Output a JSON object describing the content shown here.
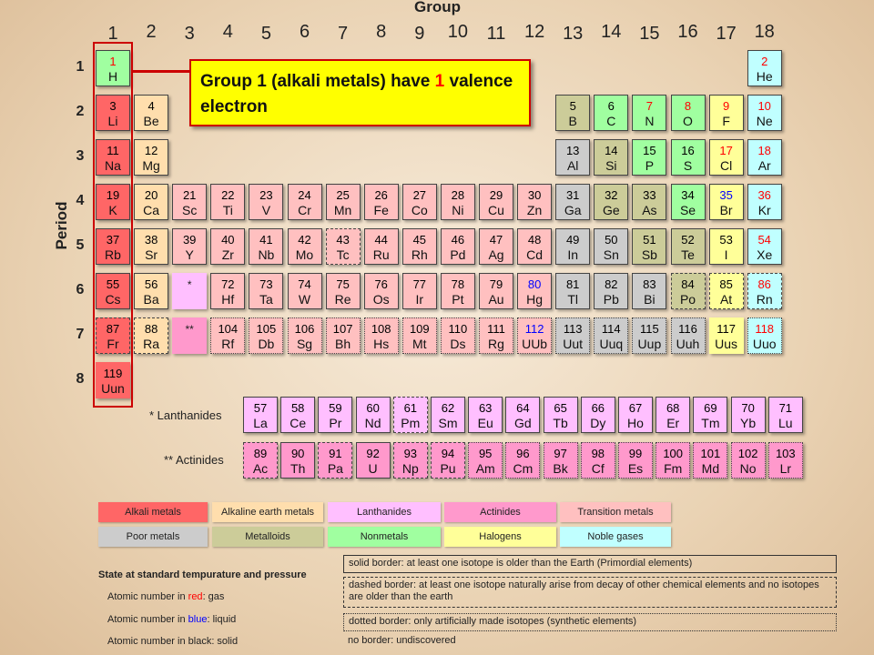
{
  "header": {
    "group_label": "Group",
    "period_label": "Period"
  },
  "groups": [
    "1",
    "2",
    "3",
    "4",
    "5",
    "6",
    "7",
    "8",
    "9",
    "10",
    "11",
    "12",
    "13",
    "14",
    "15",
    "16",
    "17",
    "18"
  ],
  "periods": [
    "1",
    "2",
    "3",
    "4",
    "5",
    "6",
    "7",
    "8"
  ],
  "callout": {
    "text_before": "Group 1 (alkali metals) have ",
    "highlight": "1",
    "text_after": " valence electron"
  },
  "colors": {
    "alkali": "#ff6666",
    "alkaline": "#ffdead",
    "lanthanide": "#ffbfff",
    "actinide": "#ff99cc",
    "transition": "#ffc0c0",
    "poor": "#cccccc",
    "metalloid": "#cccc99",
    "nonmetal": "#a0ffa0",
    "halogen": "#ffff99",
    "noble": "#c0ffff",
    "gas": "#ff0000",
    "liquid": "#0000ff",
    "solid": "#000000",
    "unknown_cell": "#ffc0c0"
  },
  "elements": [
    {
      "n": "1",
      "s": "H",
      "c": "nonmetal",
      "st": "gas",
      "b": "solid"
    },
    {
      "n": "2",
      "s": "He",
      "c": "noble",
      "st": "gas",
      "b": "solid"
    },
    {
      "n": "3",
      "s": "Li",
      "c": "alkali",
      "st": "solid",
      "b": "solid"
    },
    {
      "n": "4",
      "s": "Be",
      "c": "alkaline",
      "st": "solid",
      "b": "solid"
    },
    {
      "n": "5",
      "s": "B",
      "c": "metalloid",
      "st": "solid",
      "b": "solid"
    },
    {
      "n": "6",
      "s": "C",
      "c": "nonmetal",
      "st": "solid",
      "b": "solid"
    },
    {
      "n": "7",
      "s": "N",
      "c": "nonmetal",
      "st": "gas",
      "b": "solid"
    },
    {
      "n": "8",
      "s": "O",
      "c": "nonmetal",
      "st": "gas",
      "b": "solid"
    },
    {
      "n": "9",
      "s": "F",
      "c": "halogen",
      "st": "gas",
      "b": "solid"
    },
    {
      "n": "10",
      "s": "Ne",
      "c": "noble",
      "st": "gas",
      "b": "solid"
    },
    {
      "n": "11",
      "s": "Na",
      "c": "alkali",
      "st": "solid",
      "b": "solid"
    },
    {
      "n": "12",
      "s": "Mg",
      "c": "alkaline",
      "st": "solid",
      "b": "solid"
    },
    {
      "n": "13",
      "s": "Al",
      "c": "poor",
      "st": "solid",
      "b": "solid"
    },
    {
      "n": "14",
      "s": "Si",
      "c": "metalloid",
      "st": "solid",
      "b": "solid"
    },
    {
      "n": "15",
      "s": "P",
      "c": "nonmetal",
      "st": "solid",
      "b": "solid"
    },
    {
      "n": "16",
      "s": "S",
      "c": "nonmetal",
      "st": "solid",
      "b": "solid"
    },
    {
      "n": "17",
      "s": "Cl",
      "c": "halogen",
      "st": "gas",
      "b": "solid"
    },
    {
      "n": "18",
      "s": "Ar",
      "c": "noble",
      "st": "gas",
      "b": "solid"
    },
    {
      "n": "19",
      "s": "K",
      "c": "alkali",
      "st": "solid",
      "b": "solid"
    },
    {
      "n": "20",
      "s": "Ca",
      "c": "alkaline",
      "st": "solid",
      "b": "solid"
    },
    {
      "n": "21",
      "s": "Sc",
      "c": "transition",
      "st": "solid",
      "b": "solid"
    },
    {
      "n": "22",
      "s": "Ti",
      "c": "transition",
      "st": "solid",
      "b": "solid"
    },
    {
      "n": "23",
      "s": "V",
      "c": "transition",
      "st": "solid",
      "b": "solid"
    },
    {
      "n": "24",
      "s": "Cr",
      "c": "transition",
      "st": "solid",
      "b": "solid"
    },
    {
      "n": "25",
      "s": "Mn",
      "c": "transition",
      "st": "solid",
      "b": "solid"
    },
    {
      "n": "26",
      "s": "Fe",
      "c": "transition",
      "st": "solid",
      "b": "solid"
    },
    {
      "n": "27",
      "s": "Co",
      "c": "transition",
      "st": "solid",
      "b": "solid"
    },
    {
      "n": "28",
      "s": "Ni",
      "c": "transition",
      "st": "solid",
      "b": "solid"
    },
    {
      "n": "29",
      "s": "Cu",
      "c": "transition",
      "st": "solid",
      "b": "solid"
    },
    {
      "n": "30",
      "s": "Zn",
      "c": "transition",
      "st": "solid",
      "b": "solid"
    },
    {
      "n": "31",
      "s": "Ga",
      "c": "poor",
      "st": "solid",
      "b": "solid"
    },
    {
      "n": "32",
      "s": "Ge",
      "c": "metalloid",
      "st": "solid",
      "b": "solid"
    },
    {
      "n": "33",
      "s": "As",
      "c": "metalloid",
      "st": "solid",
      "b": "solid"
    },
    {
      "n": "34",
      "s": "Se",
      "c": "nonmetal",
      "st": "solid",
      "b": "solid"
    },
    {
      "n": "35",
      "s": "Br",
      "c": "halogen",
      "st": "liquid",
      "b": "solid"
    },
    {
      "n": "36",
      "s": "Kr",
      "c": "noble",
      "st": "gas",
      "b": "solid"
    },
    {
      "n": "37",
      "s": "Rb",
      "c": "alkali",
      "st": "solid",
      "b": "solid"
    },
    {
      "n": "38",
      "s": "Sr",
      "c": "alkaline",
      "st": "solid",
      "b": "solid"
    },
    {
      "n": "39",
      "s": "Y",
      "c": "transition",
      "st": "solid",
      "b": "solid"
    },
    {
      "n": "40",
      "s": "Zr",
      "c": "transition",
      "st": "solid",
      "b": "solid"
    },
    {
      "n": "41",
      "s": "Nb",
      "c": "transition",
      "st": "solid",
      "b": "solid"
    },
    {
      "n": "42",
      "s": "Mo",
      "c": "transition",
      "st": "solid",
      "b": "solid"
    },
    {
      "n": "43",
      "s": "Tc",
      "c": "transition",
      "st": "solid",
      "b": "dashed"
    },
    {
      "n": "44",
      "s": "Ru",
      "c": "transition",
      "st": "solid",
      "b": "solid"
    },
    {
      "n": "45",
      "s": "Rh",
      "c": "transition",
      "st": "solid",
      "b": "solid"
    },
    {
      "n": "46",
      "s": "Pd",
      "c": "transition",
      "st": "solid",
      "b": "solid"
    },
    {
      "n": "47",
      "s": "Ag",
      "c": "transition",
      "st": "solid",
      "b": "solid"
    },
    {
      "n": "48",
      "s": "Cd",
      "c": "transition",
      "st": "solid",
      "b": "solid"
    },
    {
      "n": "49",
      "s": "In",
      "c": "poor",
      "st": "solid",
      "b": "solid"
    },
    {
      "n": "50",
      "s": "Sn",
      "c": "poor",
      "st": "solid",
      "b": "solid"
    },
    {
      "n": "51",
      "s": "Sb",
      "c": "metalloid",
      "st": "solid",
      "b": "solid"
    },
    {
      "n": "52",
      "s": "Te",
      "c": "metalloid",
      "st": "solid",
      "b": "solid"
    },
    {
      "n": "53",
      "s": "I",
      "c": "halogen",
      "st": "solid",
      "b": "solid"
    },
    {
      "n": "54",
      "s": "Xe",
      "c": "noble",
      "st": "gas",
      "b": "solid"
    },
    {
      "n": "55",
      "s": "Cs",
      "c": "alkali",
      "st": "solid",
      "b": "solid"
    },
    {
      "n": "56",
      "s": "Ba",
      "c": "alkaline",
      "st": "solid",
      "b": "solid"
    },
    {
      "n": "72",
      "s": "Hf",
      "c": "transition",
      "st": "solid",
      "b": "solid"
    },
    {
      "n": "73",
      "s": "Ta",
      "c": "transition",
      "st": "solid",
      "b": "solid"
    },
    {
      "n": "74",
      "s": "W",
      "c": "transition",
      "st": "solid",
      "b": "solid"
    },
    {
      "n": "75",
      "s": "Re",
      "c": "transition",
      "st": "solid",
      "b": "solid"
    },
    {
      "n": "76",
      "s": "Os",
      "c": "transition",
      "st": "solid",
      "b": "solid"
    },
    {
      "n": "77",
      "s": "Ir",
      "c": "transition",
      "st": "solid",
      "b": "solid"
    },
    {
      "n": "78",
      "s": "Pt",
      "c": "transition",
      "st": "solid",
      "b": "solid"
    },
    {
      "n": "79",
      "s": "Au",
      "c": "transition",
      "st": "solid",
      "b": "solid"
    },
    {
      "n": "80",
      "s": "Hg",
      "c": "transition",
      "st": "liquid",
      "b": "solid"
    },
    {
      "n": "81",
      "s": "Tl",
      "c": "poor",
      "st": "solid",
      "b": "solid"
    },
    {
      "n": "82",
      "s": "Pb",
      "c": "poor",
      "st": "solid",
      "b": "solid"
    },
    {
      "n": "83",
      "s": "Bi",
      "c": "poor",
      "st": "solid",
      "b": "solid"
    },
    {
      "n": "84",
      "s": "Po",
      "c": "metalloid",
      "st": "solid",
      "b": "dashed"
    },
    {
      "n": "85",
      "s": "At",
      "c": "halogen",
      "st": "solid",
      "b": "dashed"
    },
    {
      "n": "86",
      "s": "Rn",
      "c": "noble",
      "st": "gas",
      "b": "dashed"
    },
    {
      "n": "87",
      "s": "Fr",
      "c": "alkali",
      "st": "solid",
      "b": "dashed"
    },
    {
      "n": "88",
      "s": "Ra",
      "c": "alkaline",
      "st": "solid",
      "b": "dashed"
    },
    {
      "n": "104",
      "s": "Rf",
      "c": "transition",
      "st": "solid",
      "b": "dotted"
    },
    {
      "n": "105",
      "s": "Db",
      "c": "transition",
      "st": "solid",
      "b": "dotted"
    },
    {
      "n": "106",
      "s": "Sg",
      "c": "transition",
      "st": "solid",
      "b": "dotted"
    },
    {
      "n": "107",
      "s": "Bh",
      "c": "transition",
      "st": "solid",
      "b": "dotted"
    },
    {
      "n": "108",
      "s": "Hs",
      "c": "transition",
      "st": "solid",
      "b": "dotted"
    },
    {
      "n": "109",
      "s": "Mt",
      "c": "transition",
      "st": "solid",
      "b": "dotted"
    },
    {
      "n": "110",
      "s": "Ds",
      "c": "transition",
      "st": "solid",
      "b": "dotted"
    },
    {
      "n": "111",
      "s": "Rg",
      "c": "transition",
      "st": "solid",
      "b": "dotted"
    },
    {
      "n": "112",
      "s": "UUb",
      "c": "transition",
      "st": "liquid",
      "b": "dotted"
    },
    {
      "n": "113",
      "s": "Uut",
      "c": "poor",
      "st": "solid",
      "b": "dotted"
    },
    {
      "n": "114",
      "s": "Uuq",
      "c": "poor",
      "st": "solid",
      "b": "dotted"
    },
    {
      "n": "115",
      "s": "Uup",
      "c": "poor",
      "st": "solid",
      "b": "dotted"
    },
    {
      "n": "116",
      "s": "Uuh",
      "c": "poor",
      "st": "solid",
      "b": "dotted"
    },
    {
      "n": "117",
      "s": "Uus",
      "c": "halogen",
      "st": "solid",
      "b": "none"
    },
    {
      "n": "118",
      "s": "Uuo",
      "c": "noble",
      "st": "gas",
      "b": "dotted"
    },
    {
      "n": "119",
      "s": "Uun",
      "c": "alkali",
      "st": "solid",
      "b": "none"
    }
  ],
  "placeholders": {
    "lanthanide": "*",
    "actinide": "**"
  },
  "series": {
    "lanthanides_label": "* Lanthanides",
    "actinides_label": "** Actinides",
    "lanthanides": [
      {
        "n": "57",
        "s": "La",
        "b": "solid"
      },
      {
        "n": "58",
        "s": "Ce",
        "b": "solid"
      },
      {
        "n": "59",
        "s": "Pr",
        "b": "solid"
      },
      {
        "n": "60",
        "s": "Nd",
        "b": "solid"
      },
      {
        "n": "61",
        "s": "Pm",
        "b": "dashed"
      },
      {
        "n": "62",
        "s": "Sm",
        "b": "solid"
      },
      {
        "n": "63",
        "s": "Eu",
        "b": "solid"
      },
      {
        "n": "64",
        "s": "Gd",
        "b": "solid"
      },
      {
        "n": "65",
        "s": "Tb",
        "b": "solid"
      },
      {
        "n": "66",
        "s": "Dy",
        "b": "solid"
      },
      {
        "n": "67",
        "s": "Ho",
        "b": "solid"
      },
      {
        "n": "68",
        "s": "Er",
        "b": "solid"
      },
      {
        "n": "69",
        "s": "Tm",
        "b": "solid"
      },
      {
        "n": "70",
        "s": "Yb",
        "b": "solid"
      },
      {
        "n": "71",
        "s": "Lu",
        "b": "solid"
      }
    ],
    "actinides": [
      {
        "n": "89",
        "s": "Ac",
        "b": "dashed"
      },
      {
        "n": "90",
        "s": "Th",
        "b": "solid"
      },
      {
        "n": "91",
        "s": "Pa",
        "b": "dashed"
      },
      {
        "n": "92",
        "s": "U",
        "b": "solid"
      },
      {
        "n": "93",
        "s": "Np",
        "b": "dashed"
      },
      {
        "n": "94",
        "s": "Pu",
        "b": "dashed"
      },
      {
        "n": "95",
        "s": "Am",
        "b": "dotted"
      },
      {
        "n": "96",
        "s": "Cm",
        "b": "dotted"
      },
      {
        "n": "97",
        "s": "Bk",
        "b": "dotted"
      },
      {
        "n": "98",
        "s": "Cf",
        "b": "dotted"
      },
      {
        "n": "99",
        "s": "Es",
        "b": "dotted"
      },
      {
        "n": "100",
        "s": "Fm",
        "b": "dotted"
      },
      {
        "n": "101",
        "s": "Md",
        "b": "dotted"
      },
      {
        "n": "102",
        "s": "No",
        "b": "dotted"
      },
      {
        "n": "103",
        "s": "Lr",
        "b": "dotted"
      }
    ]
  },
  "legend": {
    "row1": [
      {
        "label": "Alkali metals",
        "c": "alkali"
      },
      {
        "label": "Alkaline earth metals",
        "c": "alkaline"
      },
      {
        "label": "Lanthanides",
        "c": "lanthanide"
      },
      {
        "label": "Actinides",
        "c": "actinide"
      },
      {
        "label": "Transition metals",
        "c": "transition"
      }
    ],
    "row2": [
      {
        "label": "Poor metals",
        "c": "poor"
      },
      {
        "label": "Metalloids",
        "c": "metalloid"
      },
      {
        "label": "Nonmetals",
        "c": "nonmetal"
      },
      {
        "label": "Halogens",
        "c": "halogen"
      },
      {
        "label": "Noble gases",
        "c": "noble"
      }
    ]
  },
  "state": {
    "title": "State at standard tempurature and pressure",
    "gas": {
      "before": "Atomic number in ",
      "word": "red",
      "after": ": gas"
    },
    "liquid": {
      "before": "Atomic number in ",
      "word": "blue",
      "after": ": liquid"
    },
    "solid": {
      "before": "Atomic number in black: solid"
    }
  },
  "borders": {
    "solid": "solid border: at least one isotope is older than the Earth (Primordial elements)",
    "dashed": "dashed border: at least one isotope naturally arise from decay of other chemical elements and no isotopes are older than the earth",
    "dotted": "dotted border: only artificially made isotopes (synthetic elements)",
    "none": "no border: undiscovered"
  }
}
